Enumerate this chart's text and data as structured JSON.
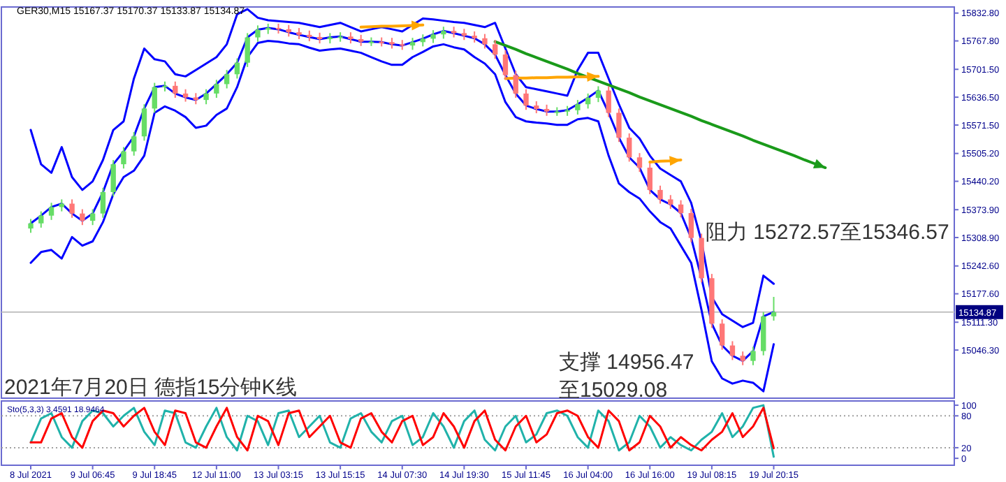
{
  "chart_data": [
    {
      "type": "candlestick",
      "categories": [
        null,
        null,
        null,
        null,
        null,
        null,
        null,
        null,
        null,
        null,
        null,
        null,
        null,
        null,
        null,
        null,
        null,
        null,
        null,
        null,
        null,
        null,
        null,
        null,
        null,
        null,
        null,
        null,
        null,
        null,
        null,
        null,
        null,
        null,
        null,
        null,
        null,
        null,
        null,
        null,
        null,
        null,
        null,
        null,
        null,
        null,
        null,
        null,
        null,
        null,
        null,
        null,
        null,
        null,
        null,
        null,
        null,
        null,
        null,
        null,
        null,
        null,
        null,
        null,
        null,
        null,
        null,
        null,
        null,
        null,
        null,
        null,
        null,
        null,
        null,
        null,
        null,
        null,
        null,
        null,
        null,
        null,
        null,
        null,
        null,
        null,
        null,
        null,
        null,
        null
      ],
      "ohlc": [
        [
          15330,
          15352,
          15320,
          15342
        ],
        [
          15342,
          15370,
          15332,
          15360
        ],
        [
          15360,
          15390,
          15350,
          15380
        ],
        [
          15380,
          15398,
          15370,
          15388
        ],
        [
          15388,
          15398,
          15355,
          15365
        ],
        [
          15365,
          15375,
          15338,
          15348
        ],
        [
          15348,
          15375,
          15338,
          15365
        ],
        [
          15365,
          15425,
          15355,
          15415
        ],
        [
          15415,
          15490,
          15405,
          15480
        ],
        [
          15480,
          15520,
          15470,
          15510
        ],
        [
          15510,
          15555,
          15500,
          15545
        ],
        [
          15545,
          15620,
          15535,
          15610
        ],
        [
          15610,
          15670,
          15600,
          15660
        ],
        [
          15660,
          15673,
          15650,
          15663
        ],
        [
          15663,
          15673,
          15635,
          15645
        ],
        [
          15645,
          15655,
          15626,
          15636
        ],
        [
          15636,
          15646,
          15620,
          15630
        ],
        [
          15630,
          15655,
          15620,
          15645
        ],
        [
          15645,
          15677,
          15635,
          15667
        ],
        [
          15667,
          15700,
          15657,
          15690
        ],
        [
          15690,
          15727,
          15680,
          15717
        ],
        [
          15717,
          15786,
          15707,
          15776
        ],
        [
          15776,
          15804,
          15766,
          15794
        ],
        [
          15794,
          15808,
          15784,
          15798
        ],
        [
          15798,
          15808,
          15785,
          15795
        ],
        [
          15795,
          15805,
          15778,
          15788
        ],
        [
          15788,
          15798,
          15772,
          15782
        ],
        [
          15782,
          15792,
          15767,
          15777
        ],
        [
          15777,
          15787,
          15762,
          15772
        ],
        [
          15772,
          15786,
          15762,
          15776
        ],
        [
          15776,
          15788,
          15766,
          15778
        ],
        [
          15778,
          15788,
          15762,
          15772
        ],
        [
          15772,
          15782,
          15756,
          15766
        ],
        [
          15766,
          15776,
          15756,
          15766
        ],
        [
          15766,
          15776,
          15755,
          15765
        ],
        [
          15765,
          15775,
          15750,
          15760
        ],
        [
          15760,
          15770,
          15747,
          15757
        ],
        [
          15757,
          15775,
          15747,
          15765
        ],
        [
          15765,
          15783,
          15755,
          15773
        ],
        [
          15773,
          15793,
          15763,
          15783
        ],
        [
          15783,
          15801,
          15773,
          15791
        ],
        [
          15791,
          15801,
          15776,
          15786
        ],
        [
          15786,
          15796,
          15770,
          15780
        ],
        [
          15780,
          15790,
          15764,
          15774
        ],
        [
          15774,
          15784,
          15750,
          15760
        ],
        [
          15760,
          15770,
          15726,
          15736
        ],
        [
          15736,
          15746,
          15678,
          15688
        ],
        [
          15688,
          15698,
          15635,
          15645
        ],
        [
          15645,
          15655,
          15607,
          15617
        ],
        [
          15617,
          15627,
          15599,
          15609
        ],
        [
          15609,
          15619,
          15593,
          15603
        ],
        [
          15603,
          15613,
          15593,
          15603
        ],
        [
          15603,
          15616,
          15593,
          15606
        ],
        [
          15606,
          15630,
          15596,
          15620
        ],
        [
          15620,
          15645,
          15610,
          15635
        ],
        [
          15635,
          15662,
          15625,
          15652
        ],
        [
          15652,
          15662,
          15590,
          15600
        ],
        [
          15600,
          15610,
          15532,
          15542
        ],
        [
          15542,
          15552,
          15486,
          15496
        ],
        [
          15496,
          15506,
          15462,
          15472
        ],
        [
          15472,
          15482,
          15410,
          15420
        ],
        [
          15420,
          15430,
          15388,
          15398
        ],
        [
          15398,
          15408,
          15376,
          15386
        ],
        [
          15386,
          15396,
          15356,
          15366
        ],
        [
          15366,
          15376,
          15298,
          15308
        ],
        [
          15308,
          15318,
          15204,
          15214
        ],
        [
          15214,
          15224,
          15098,
          15108
        ],
        [
          15108,
          15118,
          15047,
          15057
        ],
        [
          15057,
          15067,
          15023,
          15033
        ],
        [
          15033,
          15043,
          15011,
          15021
        ],
        [
          15021,
          15054,
          15011,
          15044
        ],
        [
          15044,
          15135,
          15034,
          15125
        ],
        [
          15125,
          15170.37,
          15115,
          15134.87
        ],
        null,
        null,
        null,
        null,
        null,
        null,
        null,
        null,
        null,
        null,
        null,
        null,
        null,
        null,
        null,
        null,
        null
      ],
      "series": [
        {
          "type": "line",
          "color": "#0000ff",
          "values": [
            15560,
            15480,
            15460,
            15520,
            15450,
            15420,
            15440,
            15490,
            15560,
            15580,
            15680,
            15750,
            15725,
            15720,
            15690,
            15685,
            15700,
            15715,
            15730,
            15760,
            15830,
            15842,
            15822,
            15816,
            15814,
            15812,
            15810,
            15805,
            15800,
            15805,
            15810,
            15800,
            15790,
            15795,
            15800,
            15795,
            15790,
            15805,
            15820,
            15818,
            15815,
            15812,
            15810,
            15805,
            15800,
            15810,
            15750,
            15690,
            15660,
            15655,
            15650,
            15645,
            15640,
            15700,
            15740,
            15740,
            15680,
            15620,
            15565,
            15540,
            15500,
            15470,
            15455,
            15440,
            15390,
            15300,
            15170,
            15130,
            15115,
            15100,
            15110,
            15220,
            15201,
            null,
            null,
            null,
            null,
            null,
            null,
            null,
            null,
            null,
            null,
            null,
            null,
            null,
            null,
            null,
            null,
            null
          ]
        },
        {
          "type": "line",
          "color": "#0000ff",
          "values": [
            15342,
            15360,
            15380,
            15388,
            15365,
            15348,
            15365,
            15415,
            15480,
            15510,
            15545,
            15610,
            15660,
            15663,
            15645,
            15636,
            15630,
            15645,
            15667,
            15690,
            15717,
            15776,
            15794,
            15798,
            15795,
            15788,
            15782,
            15777,
            15772,
            15776,
            15778,
            15772,
            15766,
            15766,
            15765,
            15760,
            15757,
            15765,
            15773,
            15783,
            15791,
            15786,
            15780,
            15774,
            15760,
            15736,
            15688,
            15645,
            15617,
            15609,
            15603,
            15603,
            15606,
            15620,
            15635,
            15652,
            15600,
            15542,
            15496,
            15472,
            15420,
            15398,
            15386,
            15366,
            15308,
            15214,
            15108,
            15057,
            15033,
            15021,
            15044,
            15125,
            15135,
            null,
            null,
            null,
            null,
            null,
            null,
            null,
            null,
            null,
            null,
            null,
            null,
            null,
            null,
            null,
            null,
            null
          ]
        },
        {
          "type": "line",
          "color": "#0000ff",
          "values": [
            15250,
            15275,
            15280,
            15260,
            15310,
            15290,
            15300,
            15345,
            15410,
            15450,
            15465,
            15500,
            15600,
            15615,
            15605,
            15590,
            15565,
            15570,
            15595,
            15610,
            15660,
            15730,
            15763,
            15768,
            15766,
            15762,
            15760,
            15752,
            15745,
            15748,
            15750,
            15745,
            15740,
            15730,
            15720,
            15712,
            15712,
            15730,
            15742,
            15755,
            15760,
            15753,
            15748,
            15730,
            15715,
            15690,
            15625,
            15590,
            15580,
            15577,
            15575,
            15572,
            15572,
            15585,
            15588,
            15580,
            15500,
            15435,
            15415,
            15400,
            15370,
            15345,
            15330,
            15290,
            15250,
            15140,
            15020,
            14980,
            14968,
            14975,
            14970,
            14950,
            15060,
            null,
            null,
            null,
            null,
            null,
            null,
            null,
            null,
            null,
            null,
            null,
            null,
            null,
            null,
            null,
            null,
            null
          ]
        },
        {
          "type": "line",
          "color": "#1a9a1a",
          "values": [
            null,
            null,
            null,
            null,
            null,
            null,
            null,
            null,
            null,
            null,
            null,
            null,
            null,
            null,
            null,
            null,
            null,
            null,
            null,
            null,
            null,
            null,
            null,
            null,
            null,
            null,
            null,
            null,
            null,
            null,
            null,
            null,
            null,
            null,
            null,
            null,
            null,
            null,
            null,
            null,
            null,
            null,
            null,
            null,
            null,
            15766,
            15757,
            15748,
            15738,
            15729,
            15720,
            15711,
            15702,
            15692,
            15683,
            15674,
            15665,
            15656,
            15647,
            15637,
            15628,
            15619,
            15610,
            15601,
            15592,
            15582,
            15573,
            15564,
            15555,
            15546,
            15536,
            15527,
            15518,
            15509,
            15500,
            15490,
            15481,
            15472,
            null,
            null,
            null,
            null,
            null,
            null,
            null,
            null,
            null,
            null,
            null,
            null
          ]
        },
        {
          "type": "line",
          "color": "#ffa500",
          "values": [
            null,
            null,
            null,
            null,
            null,
            null,
            null,
            null,
            null,
            null,
            null,
            null,
            null,
            null,
            null,
            null,
            null,
            null,
            null,
            null,
            null,
            null,
            null,
            null,
            null,
            null,
            null,
            null,
            null,
            null,
            null,
            null,
            15800,
            15801,
            15802,
            15802,
            15803,
            15804,
            15805,
            null,
            null,
            null,
            null,
            null,
            null,
            null,
            null,
            null,
            null,
            null,
            null,
            null,
            null,
            null,
            null,
            null,
            null,
            null,
            null,
            null,
            null,
            null,
            null,
            null,
            null,
            null,
            null,
            null,
            null,
            null,
            null,
            null,
            null,
            null,
            null,
            null,
            null,
            null,
            null,
            null,
            null,
            null,
            null,
            null,
            null,
            null,
            null,
            null,
            null,
            null
          ]
        },
        {
          "type": "line",
          "color": "#ffa500",
          "values": [
            null,
            null,
            null,
            null,
            null,
            null,
            null,
            null,
            null,
            null,
            null,
            null,
            null,
            null,
            null,
            null,
            null,
            null,
            null,
            null,
            null,
            null,
            null,
            null,
            null,
            null,
            null,
            null,
            null,
            null,
            null,
            null,
            null,
            null,
            null,
            null,
            null,
            null,
            null,
            null,
            null,
            null,
            null,
            null,
            null,
            null,
            15680,
            15681,
            15681,
            15682,
            15682,
            15683,
            15683,
            15684,
            15684,
            15685,
            null,
            null,
            null,
            null,
            null,
            null,
            null,
            null,
            null,
            null,
            null,
            null,
            null,
            null,
            null,
            null,
            null,
            null,
            null,
            null,
            null,
            null,
            null,
            null,
            null,
            null,
            null,
            null,
            null,
            null,
            null,
            null,
            null,
            null
          ]
        },
        {
          "type": "line",
          "color": "#ffa500",
          "values": [
            null,
            null,
            null,
            null,
            null,
            null,
            null,
            null,
            null,
            null,
            null,
            null,
            null,
            null,
            null,
            null,
            null,
            null,
            null,
            null,
            null,
            null,
            null,
            null,
            null,
            null,
            null,
            null,
            null,
            null,
            null,
            null,
            null,
            null,
            null,
            null,
            null,
            null,
            null,
            null,
            null,
            null,
            null,
            null,
            null,
            null,
            null,
            null,
            null,
            null,
            null,
            null,
            null,
            null,
            null,
            null,
            null,
            null,
            null,
            null,
            15485,
            15487,
            15488,
            15490,
            null,
            null,
            null,
            null,
            null,
            null,
            null,
            null,
            null,
            null,
            null,
            null,
            null,
            null,
            null,
            null,
            null,
            null,
            null,
            null,
            null,
            null,
            null,
            null,
            null,
            null
          ]
        }
      ],
      "ylim": [
        14934,
        15847
      ],
      "yticks": [
        {
          "value": 15832.8,
          "label": "15832.80"
        },
        {
          "value": 15767.8,
          "label": "15767.80"
        },
        {
          "value": 15701.5,
          "label": "15701.50"
        },
        {
          "value": 15636.5,
          "label": "15636.50"
        },
        {
          "value": 15571.5,
          "label": "15571.50"
        },
        {
          "value": 15505.2,
          "label": "15505.20"
        },
        {
          "value": 15440.2,
          "label": "15440.20"
        },
        {
          "value": 15373.9,
          "label": "15373.90"
        },
        {
          "value": 15308.9,
          "label": "15308.90"
        },
        {
          "value": 15242.6,
          "label": "15242.60"
        },
        {
          "value": 15177.6,
          "label": "15177.60"
        },
        {
          "value": 15111.3,
          "label": "15111.30"
        },
        {
          "value": 15046.3,
          "label": "15046.30"
        }
      ],
      "tick_labels": "y",
      "ref_lines": [
        {
          "axis": "y",
          "value": 15134.87,
          "label": "15134.87",
          "color": "#c0c0c0"
        }
      ],
      "annotations": [
        "GER30,M15  15167.37 15170.37 15133.87 15134.87",
        "阻力 15272.57至15346.57",
        "支撑 14956.47\n至15029.08",
        "2021年7月20日 德指15分钟K线"
      ]
    },
    {
      "type": "line",
      "categories": [
        "8 Jul 2021",
        null,
        null,
        null,
        null,
        null,
        "9 Jul 06:45",
        null,
        null,
        null,
        null,
        null,
        "9 Jul 18:45",
        null,
        null,
        null,
        null,
        null,
        "12 Jul 11:00",
        null,
        null,
        null,
        null,
        null,
        "13 Jul 03:15",
        null,
        null,
        null,
        null,
        null,
        "13 Jul 15:15",
        null,
        null,
        null,
        null,
        null,
        "14 Jul 07:30",
        null,
        null,
        null,
        null,
        null,
        "14 Jul 19:30",
        null,
        null,
        null,
        null,
        null,
        "15 Jul 11:45",
        null,
        null,
        null,
        null,
        null,
        "16 Jul 04:00",
        null,
        null,
        null,
        null,
        null,
        "16 Jul 16:00",
        null,
        null,
        null,
        null,
        null,
        "19 Jul 08:15",
        null,
        null,
        null,
        null,
        null,
        "19 Jul 20:15",
        null,
        null,
        null,
        null,
        null,
        null,
        null,
        null,
        null,
        null,
        null,
        null,
        null,
        null,
        null,
        null,
        null
      ],
      "series": [
        {
          "color": "#20b2aa",
          "values": [
            30,
            75,
            85,
            40,
            20,
            70,
            90,
            85,
            60,
            80,
            95,
            50,
            25,
            90,
            85,
            30,
            20,
            60,
            95,
            40,
            15,
            80,
            70,
            25,
            85,
            90,
            40,
            60,
            80,
            30,
            20,
            75,
            85,
            50,
            30,
            70,
            80,
            25,
            40,
            85,
            60,
            20,
            70,
            90,
            35,
            15,
            60,
            80,
            30,
            45,
            85,
            90,
            80,
            40,
            20,
            90,
            70,
            15,
            30,
            80,
            60,
            20,
            40,
            25,
            15,
            35,
            50,
            85,
            40,
            60,
            95,
            100,
            3,
            null,
            null,
            null,
            null,
            null,
            null,
            null,
            null,
            null,
            null,
            null,
            null,
            null,
            null,
            null,
            null,
            null
          ]
        },
        {
          "color": "#ff0000",
          "values": [
            30,
            30,
            75,
            85,
            40,
            20,
            70,
            90,
            85,
            60,
            80,
            95,
            50,
            25,
            90,
            85,
            30,
            20,
            60,
            95,
            40,
            15,
            80,
            70,
            25,
            85,
            90,
            40,
            60,
            80,
            30,
            20,
            75,
            85,
            50,
            30,
            70,
            80,
            25,
            40,
            85,
            60,
            20,
            70,
            90,
            35,
            15,
            60,
            80,
            30,
            45,
            85,
            90,
            80,
            40,
            20,
            90,
            70,
            15,
            30,
            80,
            60,
            20,
            40,
            25,
            15,
            35,
            50,
            85,
            40,
            60,
            95,
            19,
            null,
            null,
            null,
            null,
            null,
            null,
            null,
            null,
            null,
            null,
            null,
            null,
            null,
            null,
            null,
            null,
            null
          ]
        }
      ],
      "ylim": [
        -13,
        108
      ],
      "yticks": [
        0,
        20,
        80,
        100
      ],
      "ref_lines": [
        {
          "axis": "y",
          "value": 20,
          "line_style": "dotted",
          "color": "#a0a0a0"
        },
        {
          "axis": "y",
          "value": 80,
          "line_style": "dotted",
          "color": "#a0a0a0"
        }
      ],
      "annotations": [
        "Sto(5,3,3) 3.4591 18.9464"
      ]
    }
  ]
}
